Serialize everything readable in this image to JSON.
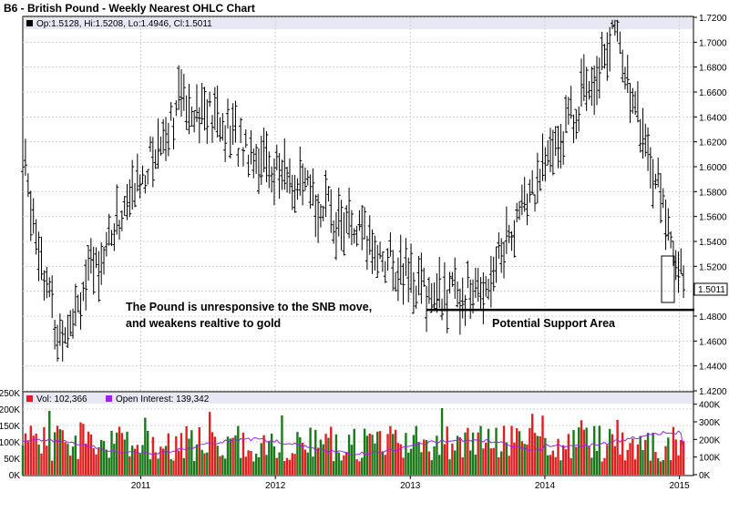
{
  "chart_data": {
    "type": "ohlc",
    "title": "B6 - British Pound - Weekly Nearest OHLC Chart",
    "price_panel": {
      "legend_text": "Op:1.5128, Hi:1.5208, Lo:1.4946, Cl:1.5011",
      "last_price_label": "1.5011",
      "ylim": [
        1.42,
        1.72
      ],
      "y_ticks": [
        "1.7200",
        "1.7000",
        "1.6800",
        "1.6600",
        "1.6400",
        "1.6200",
        "1.6000",
        "1.5800",
        "1.5600",
        "1.5400",
        "1.5200",
        "1.5000",
        "1.4800",
        "1.4600",
        "1.4400",
        "1.4200"
      ],
      "support_level": 1.485,
      "support_label": "Potential Support Area",
      "annotation_line1": "The Pound is unresponsive to the SNB move,",
      "annotation_line2": "and weakens realtive to gold",
      "key_points": [
        {
          "date": "2010-05-20",
          "high": 1.5,
          "low": 1.425
        },
        {
          "date": "2011-04-28",
          "high": 1.675,
          "low": 1.64
        },
        {
          "date": "2013-03-07",
          "high": 1.505,
          "low": 1.485
        },
        {
          "date": "2013-07-11",
          "high": 1.52,
          "low": 1.481
        },
        {
          "date": "2014-07-10",
          "high": 1.717,
          "low": 1.7
        },
        {
          "date": "2015-01-12",
          "open": 1.5128,
          "high": 1.5208,
          "low": 1.4946,
          "close": 1.5011
        }
      ]
    },
    "volume_panel": {
      "legend_vol": "Vol: 102,366",
      "legend_oi": "Open Interest: 139,342",
      "vol_ticks_left": [
        "250K",
        "200K",
        "150K",
        "100K",
        "50K",
        "0K"
      ],
      "vol_ylim": [
        0,
        250000
      ],
      "oi_ticks_right": [
        "400K",
        "300K",
        "200K",
        "100K",
        "0K"
      ],
      "oi_ylim": [
        0,
        450000
      ],
      "series": [
        {
          "name": "Vol",
          "color": "#e02020",
          "last": 102366
        },
        {
          "name": "Open Interest",
          "color": "#a020f0",
          "last": 139342
        }
      ]
    },
    "x_ticks": [
      "2011",
      "2012",
      "2013",
      "2014",
      "2015"
    ],
    "colors": {
      "up": "#1a7a1a",
      "down": "#e02020",
      "ohlc": "#000000",
      "oi_line": "#a020f0",
      "legend_band": "#e8e8f4"
    }
  }
}
